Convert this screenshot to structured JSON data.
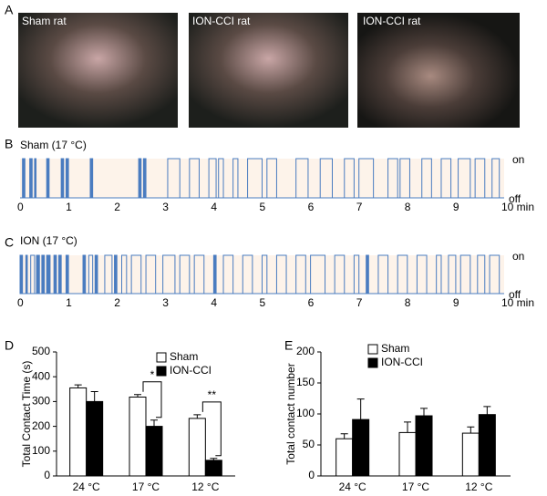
{
  "panels": [
    "A",
    "B",
    "C",
    "D",
    "E"
  ],
  "photos": [
    "Sham rat",
    "ION-CCI rat",
    "ION-CCI rat"
  ],
  "trace_xticks": [
    0,
    1,
    2,
    3,
    4,
    5,
    6,
    7,
    8,
    9,
    {
      "value": 10,
      "label": "10 min"
    }
  ],
  "trace_xlim": [
    0,
    10
  ],
  "trace_states": [
    "on",
    "off"
  ],
  "traces": [
    {
      "label": "Sham (17 °C)",
      "color": "#4a7cc0",
      "intervals": [
        [
          0.05,
          0.1
        ],
        [
          0.2,
          0.25
        ],
        [
          0.3,
          0.33
        ],
        [
          0.55,
          0.6
        ],
        [
          0.85,
          0.9
        ],
        [
          0.95,
          1.0
        ],
        [
          1.45,
          1.5
        ],
        [
          2.45,
          2.5
        ],
        [
          2.55,
          2.6
        ],
        [
          3.05,
          3.3
        ],
        [
          3.5,
          3.7
        ],
        [
          3.9,
          4.05
        ],
        [
          4.1,
          4.2
        ],
        [
          4.4,
          4.5
        ],
        [
          4.7,
          5.0
        ],
        [
          5.1,
          5.3
        ],
        [
          5.7,
          5.95
        ],
        [
          6.2,
          6.45
        ],
        [
          6.7,
          6.9
        ],
        [
          7.0,
          7.3
        ],
        [
          7.6,
          7.8
        ],
        [
          7.85,
          8.05
        ],
        [
          8.3,
          8.5
        ],
        [
          8.7,
          8.9
        ],
        [
          9.05,
          9.3
        ],
        [
          9.4,
          9.6
        ],
        [
          9.75,
          9.9
        ]
      ]
    },
    {
      "label": "ION (17 °C)",
      "color": "#4a7cc0",
      "intervals": [
        [
          0.0,
          0.05
        ],
        [
          0.12,
          0.15
        ],
        [
          0.22,
          0.3
        ],
        [
          0.34,
          0.4
        ],
        [
          0.45,
          0.5
        ],
        [
          0.55,
          0.62
        ],
        [
          0.7,
          0.75
        ],
        [
          0.8,
          0.85
        ],
        [
          0.95,
          1.0
        ],
        [
          1.3,
          1.35
        ],
        [
          1.42,
          1.5
        ],
        [
          1.55,
          1.6
        ],
        [
          1.75,
          1.9
        ],
        [
          1.95,
          2.0
        ],
        [
          2.1,
          2.2
        ],
        [
          2.3,
          2.5
        ],
        [
          2.6,
          2.8
        ],
        [
          2.95,
          3.2
        ],
        [
          3.3,
          3.5
        ],
        [
          3.6,
          3.8
        ],
        [
          4.0,
          4.05
        ],
        [
          4.2,
          4.4
        ],
        [
          4.6,
          4.8
        ],
        [
          5.0,
          5.1
        ],
        [
          5.3,
          5.5
        ],
        [
          5.7,
          5.9
        ],
        [
          6.0,
          6.3
        ],
        [
          6.5,
          6.7
        ],
        [
          6.9,
          7.0
        ],
        [
          7.15,
          7.2
        ],
        [
          7.4,
          7.6
        ],
        [
          7.8,
          8.0
        ],
        [
          8.2,
          8.4
        ],
        [
          8.6,
          8.7
        ],
        [
          8.85,
          9.0
        ],
        [
          9.1,
          9.3
        ],
        [
          9.45,
          9.6
        ],
        [
          9.7,
          9.9
        ]
      ]
    }
  ],
  "chart_data": [
    {
      "type": "bar",
      "ylabel": "Total Contact Time (s)",
      "categories": [
        "24 °C",
        "17 °C",
        "12 °C"
      ],
      "series": [
        {
          "name": "Sham",
          "color": "#ffffff",
          "values": [
            355,
            318,
            232
          ],
          "errors": [
            12,
            10,
            15
          ]
        },
        {
          "name": "ION-CCI",
          "color": "#000000",
          "values": [
            300,
            200,
            63
          ],
          "errors": [
            40,
            25,
            8
          ]
        }
      ],
      "ylim": [
        0,
        500
      ],
      "yticks": [
        0,
        100,
        200,
        300,
        400,
        500
      ],
      "annotations": [
        "*",
        "**"
      ]
    },
    {
      "type": "bar",
      "ylabel": "Total contact number",
      "categories": [
        "24 °C",
        "17 °C",
        "12 °C"
      ],
      "series": [
        {
          "name": "Sham",
          "color": "#ffffff",
          "values": [
            60,
            70,
            69
          ],
          "errors": [
            8,
            17,
            10
          ]
        },
        {
          "name": "ION-CCI",
          "color": "#000000",
          "values": [
            91,
            97,
            99
          ],
          "errors": [
            33,
            12,
            13
          ]
        }
      ],
      "ylim": [
        0,
        200
      ],
      "yticks": [
        0,
        50,
        100,
        150,
        200
      ]
    }
  ]
}
